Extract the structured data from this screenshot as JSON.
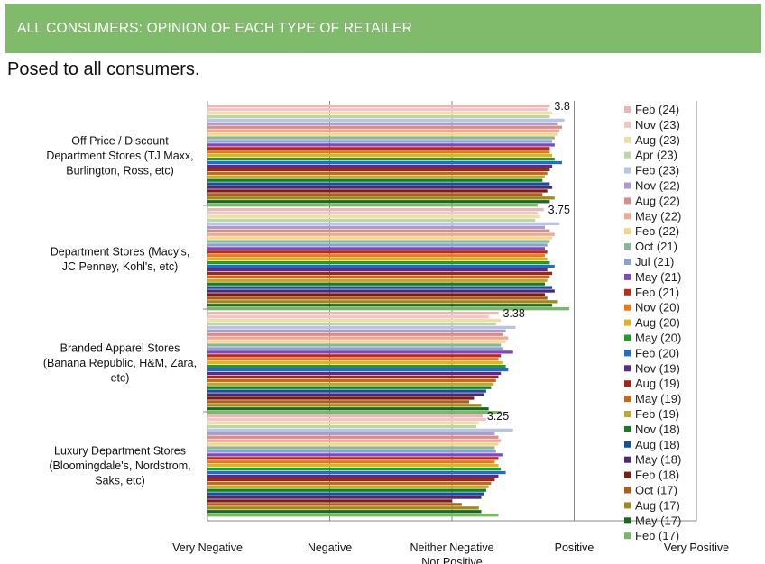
{
  "header": {
    "title": "ALL CONSUMERS: OPINION OF EACH TYPE OF RETAILER"
  },
  "subtitle": "Posed to all consumers.",
  "colors": {
    "header_bg": "#7fbb6a",
    "axis": "#888888",
    "series": [
      "#e6b8b8",
      "#f2c6c4",
      "#ece0a4",
      "#bcd6a8",
      "#b9c4e2",
      "#a99bcd",
      "#d98d88",
      "#eda896",
      "#f5d68a",
      "#86b796",
      "#8ba1cf",
      "#7d48b8",
      "#c22718",
      "#e87a10",
      "#e0b21c",
      "#239a2a",
      "#1f6ec8",
      "#5a2c8e",
      "#a32518",
      "#c9661a",
      "#c4a626",
      "#1a7d24",
      "#14539a",
      "#4a2978",
      "#7e1c14",
      "#b05e16",
      "#9f8a1e",
      "#166b1e",
      "#78b865"
    ]
  },
  "chart_data": {
    "type": "bar",
    "orientation": "horizontal",
    "categories": [
      "Off Price / Discount Department Stores (TJ Maxx, Burlington, Ross, etc)",
      "Department Stores (Macy's, JC Penney, Kohl's, etc)",
      "Branded Apparel Stores (Banana Republic, H&M, Zara, etc)",
      "Luxury Department Stores (Bloomingdale's, Nordstrom, Saks, etc)"
    ],
    "category_lines": [
      [
        "Off Price / Discount",
        "Department Stores (TJ Maxx,",
        "Burlington, Ross, etc)"
      ],
      [
        "Department Stores (Macy's,",
        "JC Penney, Kohl's, etc)"
      ],
      [
        "Branded Apparel Stores",
        "(Banana Republic, H&M, Zara,",
        "etc)"
      ],
      [
        "Luxury Department Stores",
        "(Bloomingdale's, Nordstrom,",
        "Saks, etc)"
      ]
    ],
    "x_ticks": [
      "Very Negative",
      "Negative",
      "Neither Negative Nor Positive",
      "Positive",
      "Very Positive"
    ],
    "x_tick_lines": [
      [
        "Very Negative"
      ],
      [
        "Negative"
      ],
      [
        "Neither Negative",
        "Nor Positive"
      ],
      [
        "Positive"
      ],
      [
        "Very Positive"
      ]
    ],
    "xlim": [
      1,
      5
    ],
    "legend_position": "right",
    "data_labels": [
      "3.8",
      "3.75",
      "3.38",
      "3.25"
    ],
    "series": [
      {
        "name": "Feb (24)",
        "values": [
          3.8,
          3.75,
          3.38,
          3.25
        ]
      },
      {
        "name": "Nov (23)",
        "values": [
          3.78,
          3.7,
          3.3,
          3.28
        ]
      },
      {
        "name": "Aug (23)",
        "values": [
          3.82,
          3.72,
          3.4,
          3.22
        ]
      },
      {
        "name": "Apr (23)",
        "values": [
          3.8,
          3.68,
          3.36,
          3.2
        ]
      },
      {
        "name": "Feb (23)",
        "values": [
          3.92,
          3.88,
          3.52,
          3.5
        ]
      },
      {
        "name": "Nov (22)",
        "values": [
          3.86,
          3.76,
          3.44,
          3.35
        ]
      },
      {
        "name": "Aug (22)",
        "values": [
          3.9,
          3.8,
          3.42,
          3.38
        ]
      },
      {
        "name": "May (22)",
        "values": [
          3.88,
          3.84,
          3.46,
          3.4
        ]
      },
      {
        "name": "Feb (22)",
        "values": [
          3.86,
          3.82,
          3.44,
          3.38
        ]
      },
      {
        "name": "Oct (21)",
        "values": [
          3.84,
          3.8,
          3.4,
          3.35
        ]
      },
      {
        "name": "Jul (21)",
        "values": [
          3.82,
          3.78,
          3.42,
          3.36
        ]
      },
      {
        "name": "May (21)",
        "values": [
          3.84,
          3.76,
          3.5,
          3.42
        ]
      },
      {
        "name": "Feb (21)",
        "values": [
          3.8,
          3.78,
          3.4,
          3.38
        ]
      },
      {
        "name": "Nov (20)",
        "values": [
          3.8,
          3.76,
          3.38,
          3.35
        ]
      },
      {
        "name": "Aug (20)",
        "values": [
          3.82,
          3.78,
          3.42,
          3.38
        ]
      },
      {
        "name": "May (20)",
        "values": [
          3.84,
          3.8,
          3.44,
          3.4
        ]
      },
      {
        "name": "Feb (20)",
        "values": [
          3.9,
          3.84,
          3.46,
          3.44
        ]
      },
      {
        "name": "Nov (19)",
        "values": [
          3.82,
          3.78,
          3.4,
          3.38
        ]
      },
      {
        "name": "Aug (19)",
        "values": [
          3.8,
          3.82,
          3.38,
          3.35
        ]
      },
      {
        "name": "May (19)",
        "values": [
          3.78,
          3.8,
          3.36,
          3.32
        ]
      },
      {
        "name": "Feb (19)",
        "values": [
          3.76,
          3.78,
          3.34,
          3.3
        ]
      },
      {
        "name": "Nov (18)",
        "values": [
          3.74,
          3.76,
          3.32,
          3.28
        ]
      },
      {
        "name": "Aug (18)",
        "values": [
          3.8,
          3.82,
          3.28,
          3.26
        ]
      },
      {
        "name": "May (18)",
        "values": [
          3.82,
          3.84,
          3.26,
          3.24
        ]
      },
      {
        "name": "Feb (18)",
        "values": [
          3.78,
          3.76,
          3.18,
          3.0
        ]
      },
      {
        "name": "Oct (17)",
        "values": [
          3.74,
          3.78,
          3.14,
          3.08
        ]
      },
      {
        "name": "Aug (17)",
        "values": [
          3.84,
          3.86,
          3.24,
          3.22
        ]
      },
      {
        "name": "May (17)",
        "values": [
          3.8,
          3.82,
          3.3,
          3.24
        ]
      },
      {
        "name": "Feb (17)",
        "values": [
          3.7,
          3.96,
          3.4,
          3.38
        ]
      }
    ]
  }
}
